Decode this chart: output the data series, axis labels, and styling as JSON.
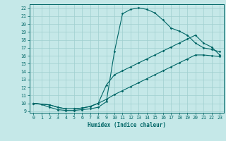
{
  "xlabel": "Humidex (Indice chaleur)",
  "bg_color": "#c5e8e8",
  "grid_color": "#9fcfcf",
  "line_color": "#006666",
  "xlim": [
    -0.5,
    23.5
  ],
  "ylim": [
    8.8,
    22.5
  ],
  "yticks": [
    9,
    10,
    11,
    12,
    13,
    14,
    15,
    16,
    17,
    18,
    19,
    20,
    21,
    22
  ],
  "xticks": [
    0,
    1,
    2,
    3,
    4,
    5,
    6,
    7,
    8,
    9,
    10,
    11,
    12,
    13,
    14,
    15,
    16,
    17,
    18,
    19,
    20,
    21,
    22,
    23
  ],
  "curve1_x": [
    0,
    1,
    2,
    3,
    4,
    5,
    6,
    7,
    8,
    9,
    10,
    11,
    12,
    13,
    14,
    15,
    16,
    17,
    18,
    19,
    20,
    21,
    22,
    23
  ],
  "curve1_y": [
    10.0,
    9.85,
    9.5,
    9.2,
    9.1,
    9.1,
    9.2,
    9.3,
    9.5,
    10.2,
    16.5,
    21.3,
    21.85,
    22.05,
    21.85,
    21.4,
    20.5,
    19.5,
    19.1,
    18.6,
    17.6,
    17.0,
    16.8,
    16.5
  ],
  "curve2_x": [
    0,
    2,
    3,
    4,
    5,
    6,
    7,
    8,
    9,
    10,
    11,
    12,
    13,
    14,
    15,
    16,
    17,
    18,
    19,
    20,
    21,
    22,
    23
  ],
  "curve2_y": [
    10.0,
    9.8,
    9.5,
    9.3,
    9.3,
    9.4,
    9.6,
    10.0,
    12.3,
    13.6,
    14.1,
    14.6,
    15.1,
    15.6,
    16.1,
    16.6,
    17.1,
    17.6,
    18.1,
    18.6,
    17.6,
    17.1,
    16.1
  ],
  "curve3_x": [
    0,
    2,
    3,
    4,
    5,
    6,
    7,
    8,
    9,
    10,
    11,
    12,
    13,
    14,
    15,
    16,
    17,
    18,
    19,
    20,
    21,
    22,
    23
  ],
  "curve3_y": [
    10.0,
    9.8,
    9.5,
    9.3,
    9.3,
    9.4,
    9.6,
    10.0,
    10.5,
    11.1,
    11.6,
    12.1,
    12.6,
    13.1,
    13.6,
    14.1,
    14.6,
    15.1,
    15.6,
    16.1,
    16.1,
    16.0,
    15.9
  ]
}
